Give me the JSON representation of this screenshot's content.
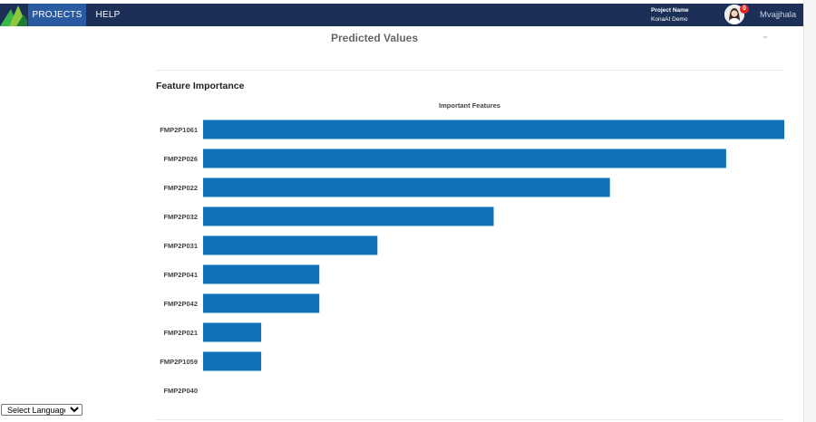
{
  "navbar": {
    "tabs": [
      {
        "label": "PROJECTS",
        "active": true
      },
      {
        "label": "HELP",
        "active": false
      }
    ],
    "project_label": "Project Name",
    "project_name": "KonaAI Demo",
    "notification_count": "0",
    "user_name": "Mvajjhala",
    "colors": {
      "bar": "#1b2f57",
      "active_tab": "#2a5aa0"
    }
  },
  "page": {
    "title": "Predicted Values",
    "section_heading": "Feature Importance"
  },
  "chart_data": {
    "type": "bar",
    "orientation": "horizontal",
    "title": "Important Features",
    "categories": [
      "FMP2P1061",
      "FMP2P026",
      "FMP2P022",
      "FMP2P032",
      "FMP2P031",
      "FMP2P041",
      "FMP2P042",
      "FMP2P021",
      "FMP2P1059",
      "FMP2P040"
    ],
    "values": [
      10,
      9,
      7,
      5,
      3,
      2,
      2,
      1,
      1,
      0
    ],
    "xlim": [
      0,
      10
    ],
    "grid": false,
    "bar_color": "#0f72b8"
  },
  "footer": {
    "language_select": {
      "selected": "Select Language"
    }
  }
}
